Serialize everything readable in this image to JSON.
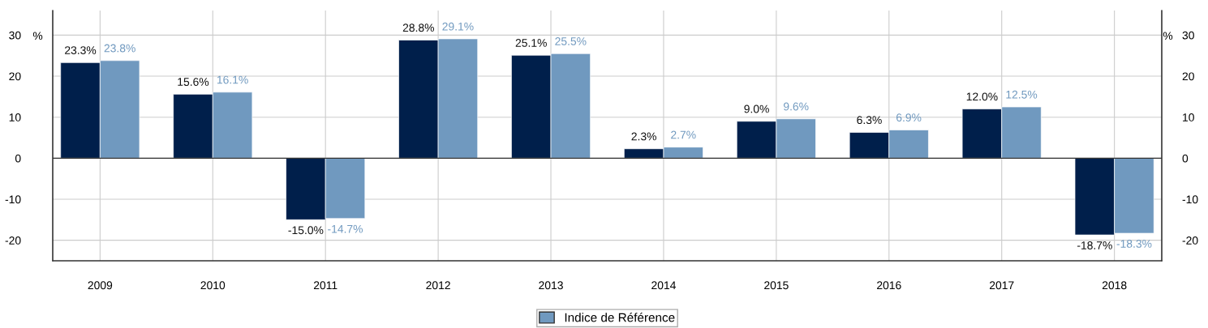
{
  "chart_data": {
    "type": "bar",
    "ylabel": "%",
    "y2label": "%",
    "categories": [
      "2009",
      "2010",
      "2011",
      "2012",
      "2013",
      "2014",
      "2015",
      "2016",
      "2017",
      "2018"
    ],
    "series": [
      {
        "color": "#001f4b",
        "values": [
          23.3,
          15.6,
          -15.0,
          28.8,
          25.1,
          2.3,
          9.0,
          6.3,
          12.0,
          -18.7
        ],
        "value_labels": [
          "23.3%",
          "15.6%",
          "-15.0%",
          "28.8%",
          "25.1%",
          "2.3%",
          "9.0%",
          "6.3%",
          "12.0%",
          "-18.7%"
        ]
      },
      {
        "name": "Indice de Référence",
        "color": "#7099bf",
        "values": [
          23.8,
          16.1,
          -14.7,
          29.1,
          25.5,
          2.7,
          9.6,
          6.9,
          12.5,
          -18.3
        ],
        "value_labels": [
          "23.8%",
          "16.1%",
          "-14.7%",
          "29.1%",
          "25.5%",
          "2.7%",
          "9.6%",
          "6.9%",
          "12.5%",
          "-18.3%"
        ]
      }
    ],
    "ylim": [
      -25,
      36
    ],
    "yticks": [
      -20,
      -10,
      0,
      10,
      20,
      30
    ],
    "y2lim": [
      -25,
      36
    ],
    "y2ticks": [
      -20,
      -10,
      0,
      10,
      20,
      30
    ],
    "grid": true,
    "legend": "bottom"
  }
}
